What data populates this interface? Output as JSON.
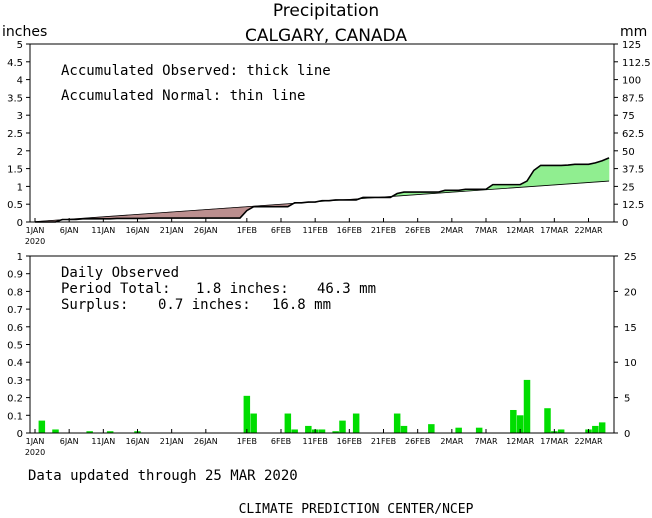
{
  "title": "Precipitation",
  "subtitle": "CALGARY, CANADA",
  "footer_updated": "Data updated through 25 MAR 2020",
  "footer_source": "CLIMATE PREDICTION CENTER/NCEP",
  "colors": {
    "surplus": "#90ee90",
    "deficit": "#bc8f8f",
    "bars": "#00dd00",
    "line": "#000000"
  },
  "chart_data": [
    {
      "type": "area",
      "ylabel_left": "inches",
      "ylabel_right": "mm",
      "annotations": [
        "Accumulated Observed: thick line",
        "Accumulated Normal: thin line"
      ],
      "ylim": [
        0,
        5
      ],
      "ylim_right": [
        0,
        125
      ],
      "y_ticks": [
        "0",
        "0.5",
        "1",
        "1.5",
        "2",
        "2.5",
        "3",
        "3.5",
        "4",
        "4.5",
        "5"
      ],
      "y_ticks_right": [
        "0",
        "12.5",
        "25",
        "37.5",
        "50",
        "62.5",
        "75",
        "87.5",
        "100",
        "112.5",
        "125"
      ],
      "x_ticks": [
        "1JAN",
        "6JAN",
        "11JAN",
        "16JAN",
        "21JAN",
        "26JAN",
        "1FEB",
        "6FEB",
        "11FEB",
        "16FEB",
        "21FEB",
        "26FEB",
        "2MAR",
        "7MAR",
        "12MAR",
        "17MAR",
        "22MAR"
      ],
      "x_ticks_day": [
        1,
        6,
        11,
        16,
        21,
        26,
        32,
        37,
        42,
        47,
        52,
        57,
        62,
        67,
        72,
        77,
        82
      ],
      "x_year_label": "2020",
      "days": 85,
      "series": [
        {
          "name": "Accumulated Observed",
          "x": [
            1,
            2,
            3,
            4,
            5,
            6,
            7,
            8,
            9,
            10,
            11,
            12,
            13,
            14,
            15,
            16,
            17,
            18,
            19,
            20,
            21,
            22,
            23,
            24,
            25,
            26,
            27,
            28,
            29,
            30,
            31,
            32,
            33,
            34,
            35,
            36,
            37,
            38,
            39,
            40,
            41,
            42,
            43,
            44,
            45,
            46,
            47,
            48,
            49,
            50,
            51,
            52,
            53,
            54,
            55,
            56,
            57,
            58,
            59,
            60,
            61,
            62,
            63,
            64,
            65,
            66,
            67,
            68,
            69,
            70,
            71,
            72,
            73,
            74,
            75,
            76,
            77,
            78,
            79,
            80,
            81,
            82,
            83,
            84,
            85
          ],
          "values": [
            0,
            0,
            0,
            0,
            0.07,
            0.07,
            0.07,
            0.09,
            0.09,
            0.09,
            0.09,
            0.09,
            0.1,
            0.1,
            0.1,
            0.1,
            0.1,
            0.11,
            0.11,
            0.11,
            0.11,
            0.11,
            0.11,
            0.11,
            0.11,
            0.11,
            0.11,
            0.11,
            0.11,
            0.11,
            0.11,
            0.32,
            0.43,
            0.43,
            0.43,
            0.43,
            0.43,
            0.43,
            0.54,
            0.54,
            0.56,
            0.56,
            0.6,
            0.6,
            0.62,
            0.62,
            0.62,
            0.62,
            0.69,
            0.69,
            0.69,
            0.69,
            0.69,
            0.8,
            0.84,
            0.84,
            0.84,
            0.84,
            0.84,
            0.84,
            0.89,
            0.89,
            0.89,
            0.92,
            0.92,
            0.92,
            0.92,
            1.05,
            1.05,
            1.05,
            1.05,
            1.05,
            1.15,
            1.45,
            1.59,
            1.59,
            1.59,
            1.59,
            1.6,
            1.62,
            1.62,
            1.62,
            1.66,
            1.72,
            1.8
          ]
        },
        {
          "name": "Accumulated Normal",
          "values_start": 0.01,
          "values_end": 1.15
        }
      ]
    },
    {
      "type": "bar",
      "title": "Daily Observed",
      "period_total_label": "Period Total:",
      "period_total_in": "1.8 inches:",
      "period_total_mm": "46.3 mm",
      "surplus_label": "Surplus:",
      "surplus_in": "0.7 inches:",
      "surplus_mm": "16.8 mm",
      "ylim": [
        0,
        1
      ],
      "ylim_right": [
        0,
        25
      ],
      "y_ticks": [
        "0",
        "0.1",
        "0.2",
        "0.3",
        "0.4",
        "0.5",
        "0.6",
        "0.7",
        "0.8",
        "0.9",
        "1"
      ],
      "y_ticks_right": [
        "0",
        "5",
        "10",
        "15",
        "20",
        "25"
      ],
      "x_ticks": [
        "1JAN",
        "6JAN",
        "11JAN",
        "16JAN",
        "21JAN",
        "26JAN",
        "1FEB",
        "6FEB",
        "11FEB",
        "16FEB",
        "21FEB",
        "26FEB",
        "2MAR",
        "7MAR",
        "12MAR",
        "17MAR",
        "22MAR"
      ],
      "x_year_label": "2020",
      "series": [
        {
          "name": "Daily Observed",
          "x": [
            2,
            4,
            9,
            12,
            16,
            32,
            33,
            38,
            39,
            41,
            42,
            43,
            45,
            46,
            48,
            54,
            55,
            59,
            63,
            66,
            71,
            72,
            73,
            76,
            77,
            78,
            82,
            83,
            84
          ],
          "values": [
            0.07,
            0.02,
            0.01,
            0.01,
            0.01,
            0.21,
            0.11,
            0.11,
            0.02,
            0.04,
            0.02,
            0.02,
            0.01,
            0.07,
            0.11,
            0.11,
            0.04,
            0.05,
            0.03,
            0.03,
            0.13,
            0.1,
            0.3,
            0.14,
            0.01,
            0.02,
            0.02,
            0.04,
            0.06
          ]
        }
      ]
    }
  ]
}
